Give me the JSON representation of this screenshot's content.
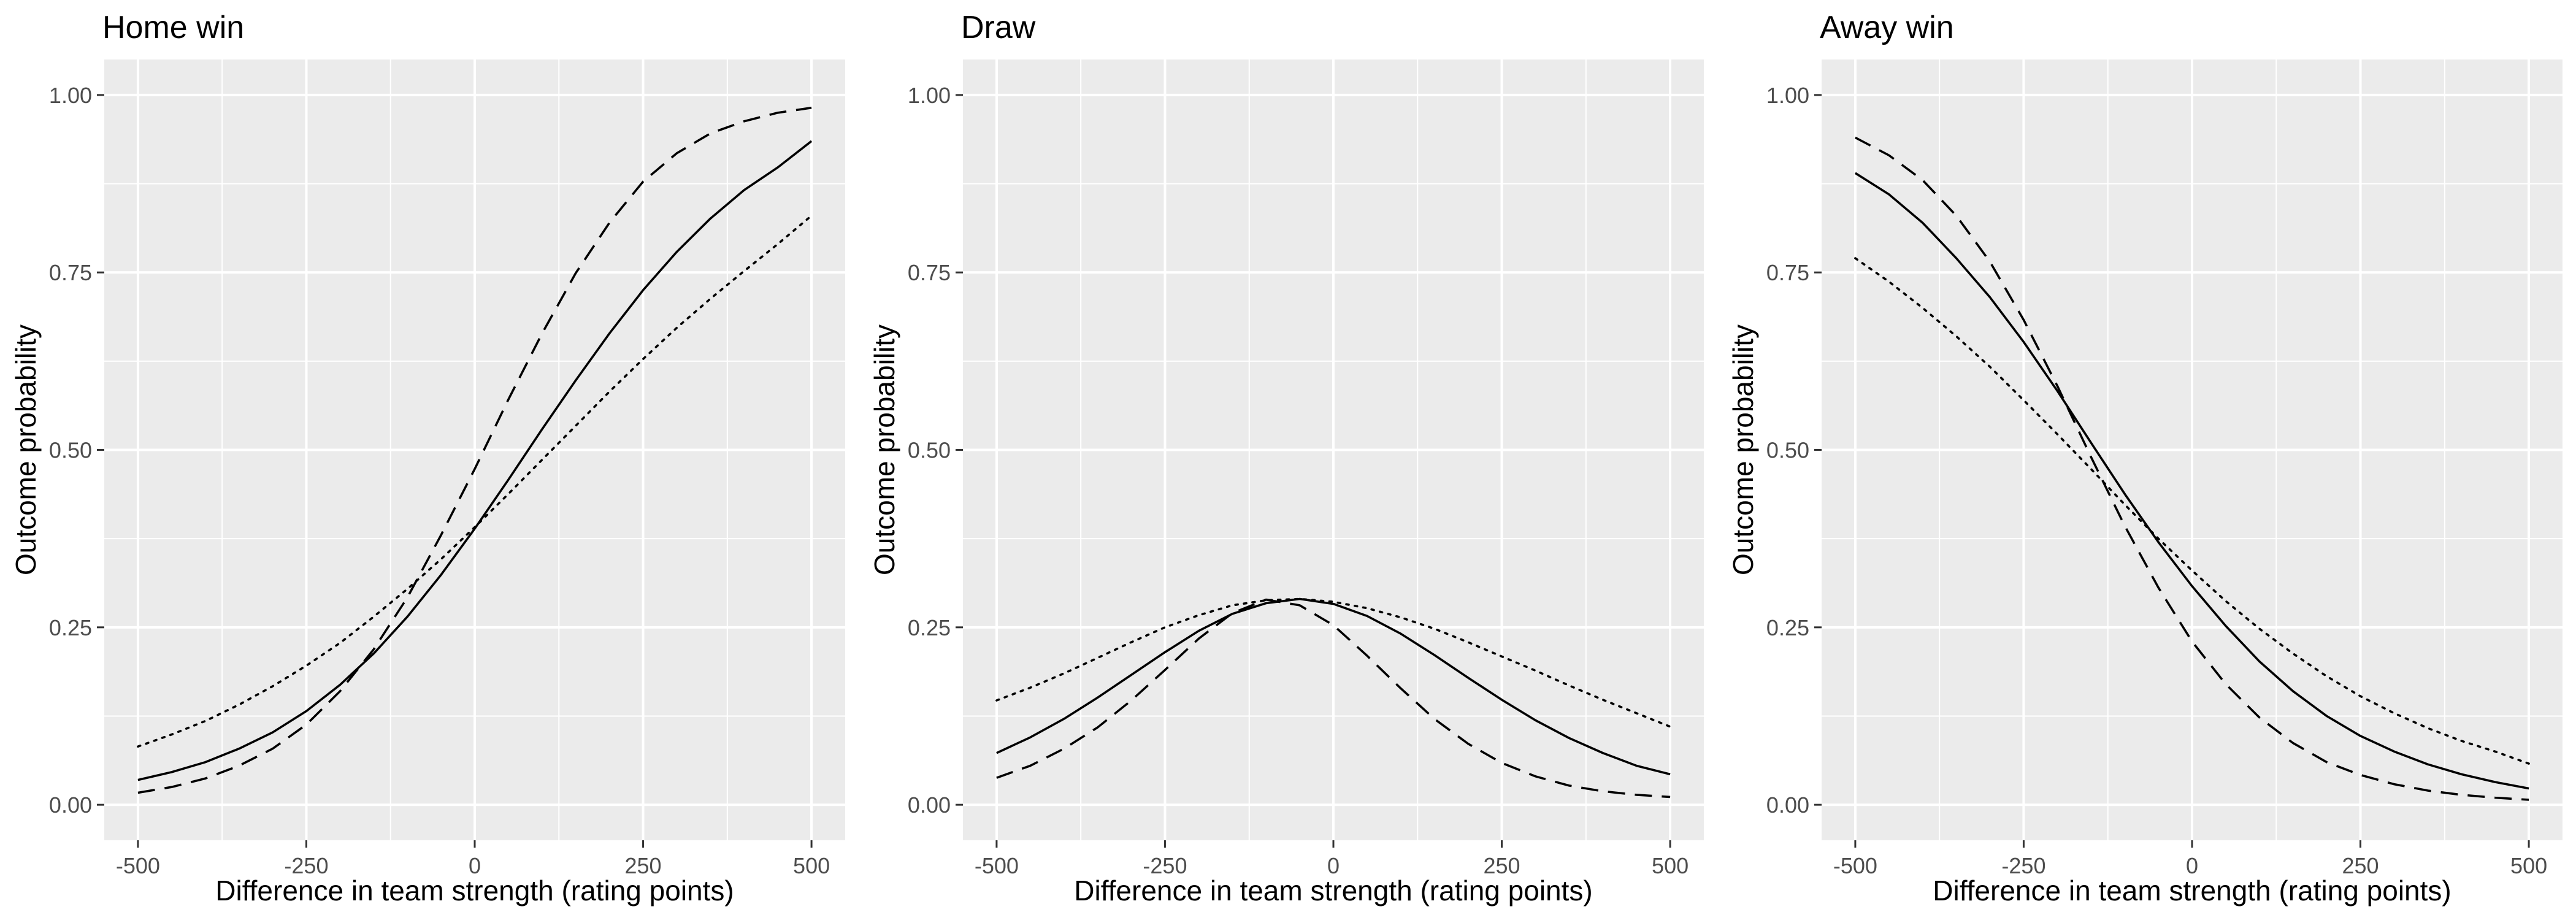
{
  "chart_data": [
    {
      "type": "line",
      "title": "Home win",
      "xlabel": "Difference in team strength (rating points)",
      "ylabel": "Outcome probability",
      "xlim": [
        -500,
        500
      ],
      "ylim": [
        0,
        1
      ],
      "x_ticks": [
        "-500",
        "-250",
        "0",
        "250",
        "500"
      ],
      "y_ticks": [
        "0.00",
        "0.25",
        "0.50",
        "0.75",
        "1.00"
      ],
      "grid": true,
      "x": [
        -500,
        -450,
        -400,
        -350,
        -300,
        -250,
        -200,
        -150,
        -100,
        -50,
        0,
        50,
        100,
        150,
        200,
        250,
        300,
        350,
        400,
        450,
        500
      ],
      "series": [
        {
          "style": "solid",
          "values": [
            0.035,
            0.046,
            0.06,
            0.079,
            0.102,
            0.132,
            0.169,
            0.213,
            0.265,
            0.324,
            0.389,
            0.458,
            0.529,
            0.598,
            0.664,
            0.725,
            0.779,
            0.826,
            0.866,
            0.898,
            0.935
          ]
        },
        {
          "style": "dashed",
          "values": [
            0.017,
            0.025,
            0.037,
            0.055,
            0.079,
            0.113,
            0.16,
            0.219,
            0.292,
            0.38,
            0.473,
            0.571,
            0.664,
            0.749,
            0.82,
            0.878,
            0.918,
            0.946,
            0.963,
            0.975,
            0.982
          ]
        },
        {
          "style": "dotted",
          "values": [
            0.082,
            0.099,
            0.118,
            0.141,
            0.167,
            0.196,
            0.228,
            0.265,
            0.304,
            0.346,
            0.391,
            0.438,
            0.486,
            0.534,
            0.582,
            0.628,
            0.672,
            0.713,
            0.752,
            0.79,
            0.83
          ]
        }
      ]
    },
    {
      "type": "line",
      "title": "Draw",
      "xlabel": "Difference in team strength (rating points)",
      "ylabel": "Outcome probability",
      "xlim": [
        -500,
        500
      ],
      "ylim": [
        0,
        1
      ],
      "x_ticks": [
        "-500",
        "-250",
        "0",
        "250",
        "500"
      ],
      "y_ticks": [
        "0.00",
        "0.25",
        "0.50",
        "0.75",
        "1.00"
      ],
      "grid": true,
      "x": [
        -500,
        -450,
        -400,
        -350,
        -300,
        -250,
        -200,
        -150,
        -100,
        -50,
        0,
        50,
        100,
        150,
        200,
        250,
        300,
        350,
        400,
        450,
        500
      ],
      "series": [
        {
          "style": "solid",
          "values": [
            0.073,
            0.095,
            0.121,
            0.151,
            0.183,
            0.215,
            0.245,
            0.269,
            0.284,
            0.29,
            0.283,
            0.266,
            0.241,
            0.211,
            0.179,
            0.148,
            0.119,
            0.094,
            0.073,
            0.055,
            0.043
          ]
        },
        {
          "style": "dashed",
          "values": [
            0.038,
            0.055,
            0.079,
            0.109,
            0.147,
            0.19,
            0.234,
            0.27,
            0.289,
            0.281,
            0.253,
            0.21,
            0.164,
            0.121,
            0.086,
            0.059,
            0.04,
            0.027,
            0.019,
            0.014,
            0.011
          ]
        },
        {
          "style": "dotted",
          "values": [
            0.147,
            0.165,
            0.185,
            0.207,
            0.229,
            0.25,
            0.267,
            0.281,
            0.288,
            0.29,
            0.286,
            0.277,
            0.264,
            0.248,
            0.229,
            0.209,
            0.189,
            0.168,
            0.148,
            0.129,
            0.11
          ]
        }
      ]
    },
    {
      "type": "line",
      "title": "Away win",
      "xlabel": "Difference in team strength (rating points)",
      "ylabel": "Outcome probability",
      "xlim": [
        -500,
        500
      ],
      "ylim": [
        0,
        1
      ],
      "x_ticks": [
        "-500",
        "-250",
        "0",
        "250",
        "500"
      ],
      "y_ticks": [
        "0.00",
        "0.25",
        "0.50",
        "0.75",
        "1.00"
      ],
      "grid": true,
      "x": [
        -500,
        -450,
        -400,
        -350,
        -300,
        -250,
        -200,
        -150,
        -100,
        -50,
        0,
        50,
        100,
        150,
        200,
        250,
        300,
        350,
        400,
        450,
        500
      ],
      "series": [
        {
          "style": "solid",
          "values": [
            0.89,
            0.86,
            0.82,
            0.77,
            0.715,
            0.652,
            0.583,
            0.51,
            0.438,
            0.37,
            0.308,
            0.252,
            0.202,
            0.16,
            0.125,
            0.097,
            0.075,
            0.057,
            0.043,
            0.032,
            0.023
          ]
        },
        {
          "style": "dashed",
          "values": [
            0.94,
            0.915,
            0.88,
            0.83,
            0.765,
            0.683,
            0.59,
            0.49,
            0.393,
            0.306,
            0.23,
            0.17,
            0.123,
            0.087,
            0.06,
            0.042,
            0.029,
            0.02,
            0.014,
            0.01,
            0.007
          ]
        },
        {
          "style": "dotted",
          "values": [
            0.77,
            0.737,
            0.7,
            0.66,
            0.617,
            0.57,
            0.522,
            0.473,
            0.423,
            0.375,
            0.33,
            0.287,
            0.248,
            0.213,
            0.181,
            0.153,
            0.129,
            0.108,
            0.09,
            0.075,
            0.058
          ]
        }
      ]
    }
  ]
}
